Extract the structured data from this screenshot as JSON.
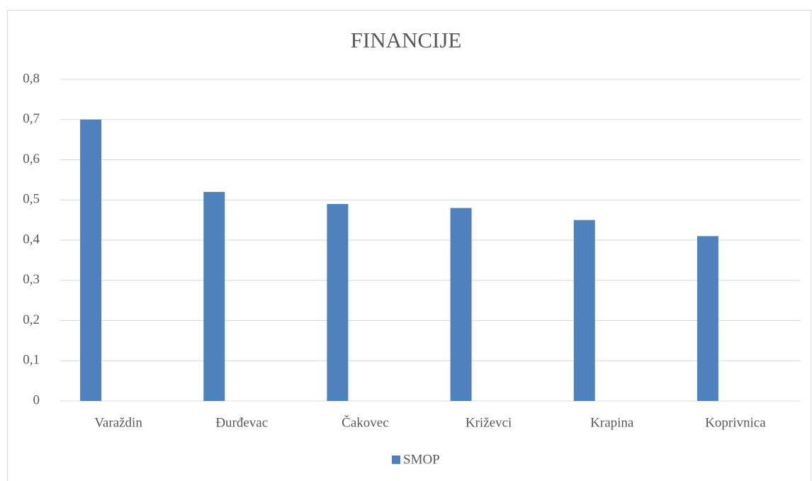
{
  "chart_data": {
    "type": "bar",
    "title": "FINANCIJE",
    "categories": [
      "Varaždin",
      "Đurđevac",
      "Čakovec",
      "Križevci",
      "Krapina",
      "Koprivnica"
    ],
    "series": [
      {
        "name": "SMOP",
        "color": "#4f81bd",
        "values": [
          0.7,
          0.52,
          0.49,
          0.48,
          0.45,
          0.41
        ]
      }
    ],
    "ylim": [
      0,
      0.8
    ],
    "yticks": [
      0,
      {
        "value": 0.1,
        "label": "0,1"
      },
      {
        "value": 0.2,
        "label": "0,2"
      },
      {
        "value": 0.3,
        "label": "0,3"
      },
      {
        "value": 0.4,
        "label": "0,4"
      },
      {
        "value": 0.5,
        "label": "0,5"
      },
      {
        "value": 0.6,
        "label": "0,6"
      },
      {
        "value": 0.7,
        "label": "0,7"
      },
      {
        "value": 0.8,
        "label": "0,8"
      }
    ],
    "grid": true,
    "legend": "bottom"
  }
}
